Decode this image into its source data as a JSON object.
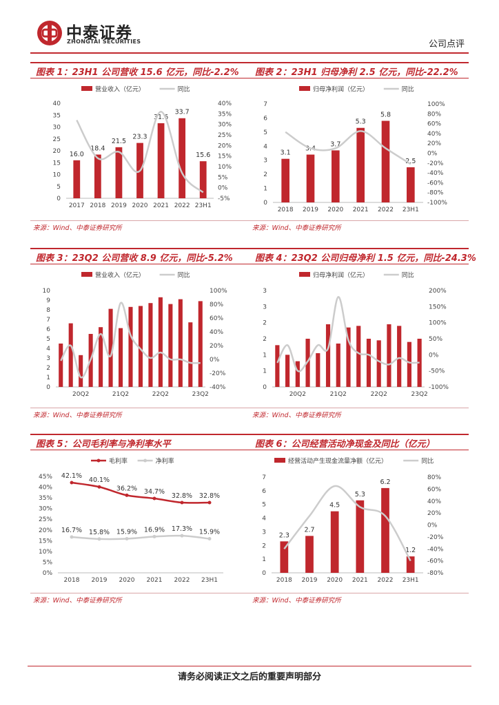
{
  "header": {
    "logo_cn": "中泰证券",
    "logo_en": "ZHONGTAI SECURITIES",
    "doc_type": "公司点评"
  },
  "footer": {
    "text": "请务必阅读正文之后的重要声明部分"
  },
  "colors": {
    "bar": "#c0272d",
    "line": "#cccccc",
    "title": "#c0272d"
  },
  "panels": [
    {
      "title": "图表 1：23H1 公司营收 15.6 亿元，同比-2.2%",
      "source": "来源：Wind、中泰证券研究所"
    },
    {
      "title": "图表 2：23H1 归母净利 2.5 亿元，同比-22.2%",
      "source": "来源：Wind、中泰证券研究所"
    },
    {
      "title": "图表 3：23Q2 公司营收 8.9 亿元，同比-5.2%",
      "source": "来源：Wind、中泰证券研究所"
    },
    {
      "title": "图表 4：23Q2 公司归母净利 1.5 亿元，同比-24.3%",
      "source": "来源：Wind、中泰证券研究所"
    },
    {
      "title": "图表 5：公司毛利率与净利率水平",
      "source": "来源：Wind、中泰证券研究所"
    },
    {
      "title": "图表 6：公司经营活动净现金及同比（亿元）",
      "source": "来源：Wind、中泰证券研究所"
    }
  ],
  "chart_data": [
    {
      "type": "bar+line",
      "legend": [
        "营业收入（亿元）",
        "同比"
      ],
      "categories": [
        "2017",
        "2018",
        "2019",
        "2020",
        "2021",
        "2022",
        "23H1"
      ],
      "bar_values": [
        16.0,
        18.4,
        21.5,
        23.3,
        31.6,
        33.7,
        15.6
      ],
      "bar_labels": [
        "16.0",
        "18.4",
        "21.5",
        "23.3",
        "31.6",
        "33.7",
        "15.6"
      ],
      "line_values": [
        32,
        14,
        17,
        8,
        36,
        7,
        -2.2
      ],
      "ylim": [
        0,
        40
      ],
      "y_ticks": [
        "0",
        "5",
        "10",
        "15",
        "20",
        "25",
        "30",
        "35",
        "40"
      ],
      "y2lim": [
        -5,
        40
      ],
      "y2_ticks": [
        "-5%",
        "0%",
        "5%",
        "10%",
        "15%",
        "20%",
        "25%",
        "30%",
        "35%",
        "40%"
      ]
    },
    {
      "type": "bar+line",
      "legend": [
        "归母净利润（亿元）",
        "同比"
      ],
      "categories": [
        "2018",
        "2019",
        "2020",
        "2021",
        "2022",
        "23H1"
      ],
      "bar_values": [
        3.1,
        3.4,
        3.7,
        5.3,
        5.8,
        2.5
      ],
      "bar_labels": [
        "3.1",
        "3.4",
        "3.7",
        "5.3",
        "5.8",
        "2.5"
      ],
      "line_values": [
        43,
        10,
        10,
        45,
        10,
        -22.2
      ],
      "ylim": [
        0,
        7
      ],
      "y_ticks": [
        "0",
        "1",
        "2",
        "3",
        "4",
        "5",
        "6",
        "7"
      ],
      "y2lim": [
        -100,
        100
      ],
      "y2_ticks": [
        "-100%",
        "-80%",
        "-60%",
        "-40%",
        "-20%",
        "0%",
        "20%",
        "40%",
        "60%",
        "80%",
        "100%"
      ]
    },
    {
      "type": "bar+line",
      "legend": [
        "营业收入（亿元）",
        "同比"
      ],
      "categories": [
        "",
        "",
        "20Q2",
        "",
        "",
        "",
        "21Q2",
        "",
        "",
        "",
        "22Q2",
        "",
        "",
        "",
        "23Q2"
      ],
      "bar_values": [
        4.5,
        6.6,
        3.3,
        5.5,
        6.2,
        8.1,
        6.1,
        8.3,
        8.4,
        8.7,
        9.3,
        8.6,
        9.1,
        6.7,
        8.9
      ],
      "line_values": [
        -2,
        20,
        -26,
        0,
        37,
        5,
        82,
        35,
        15,
        2,
        10,
        0,
        0,
        -5,
        -5.2
      ],
      "ylim": [
        0,
        10
      ],
      "y_ticks": [
        "0",
        "1",
        "2",
        "3",
        "4",
        "5",
        "6",
        "7",
        "8",
        "9",
        "10"
      ],
      "y2lim": [
        -40,
        100
      ],
      "y2_ticks": [
        "-40%",
        "-20%",
        "0%",
        "20%",
        "40%",
        "60%",
        "80%",
        "100%"
      ]
    },
    {
      "type": "bar+line",
      "legend": [
        "归母净利润（亿元）",
        "同比"
      ],
      "categories": [
        "",
        "",
        "20Q2",
        "",
        "",
        "",
        "21Q2",
        "",
        "",
        "",
        "22Q2",
        "",
        "",
        "",
        "23Q2"
      ],
      "bar_values": [
        1.3,
        1.0,
        0.8,
        1.5,
        1.05,
        1.95,
        1.35,
        1.85,
        1.9,
        1.5,
        1.45,
        1.95,
        1.9,
        1.4,
        1.5
      ],
      "line_values": [
        -25,
        30,
        -50,
        -20,
        30,
        20,
        180,
        45,
        5,
        0,
        -20,
        -30,
        -10,
        -24,
        -24.3
      ],
      "ylim": [
        0,
        3
      ],
      "y_ticks": [
        "0",
        "1",
        "1",
        "2",
        "2",
        "3",
        "3"
      ],
      "y2lim": [
        -100,
        200
      ],
      "y2_ticks": [
        "-100%",
        "-50%",
        "0%",
        "50%",
        "100%",
        "150%",
        "200%"
      ]
    },
    {
      "type": "line",
      "legend": [
        "毛利率",
        "净利率"
      ],
      "categories": [
        "2018",
        "2019",
        "2020",
        "2021",
        "2022",
        "23H1"
      ],
      "series": [
        {
          "name": "毛利率",
          "values": [
            42.1,
            40.1,
            36.2,
            34.7,
            32.8,
            32.8
          ],
          "labels": [
            "42.1%",
            "40.1%",
            "36.2%",
            "34.7%",
            "32.8%",
            "32.8%"
          ]
        },
        {
          "name": "净利率",
          "values": [
            16.7,
            15.8,
            15.9,
            16.9,
            17.3,
            15.9
          ],
          "labels": [
            "16.7%",
            "15.8%",
            "15.9%",
            "16.9%",
            "17.3%",
            "15.9%"
          ]
        }
      ],
      "ylim": [
        0,
        45
      ],
      "y_ticks": [
        "0%",
        "5%",
        "10%",
        "15%",
        "20%",
        "25%",
        "30%",
        "35%",
        "40%",
        "45%"
      ]
    },
    {
      "type": "bar+line",
      "legend": [
        "经营活动产生现金流量净额（亿元）",
        "同比"
      ],
      "categories": [
        "2018",
        "2019",
        "2020",
        "2021",
        "2022",
        "23H1"
      ],
      "bar_values": [
        2.3,
        2.7,
        4.5,
        5.3,
        6.2,
        1.2
      ],
      "bar_labels": [
        "2.3",
        "2.7",
        "4.5",
        "5.3",
        "6.2",
        "1.2"
      ],
      "line_values": [
        -40,
        15,
        65,
        30,
        15,
        -60
      ],
      "ylim": [
        0,
        7
      ],
      "y_ticks": [
        "0",
        "1",
        "2",
        "3",
        "4",
        "5",
        "6",
        "7"
      ],
      "y2lim": [
        -80,
        80
      ],
      "y2_ticks": [
        "-80%",
        "-60%",
        "-40%",
        "-20%",
        "0%",
        "20%",
        "40%",
        "60%",
        "80%"
      ]
    }
  ]
}
